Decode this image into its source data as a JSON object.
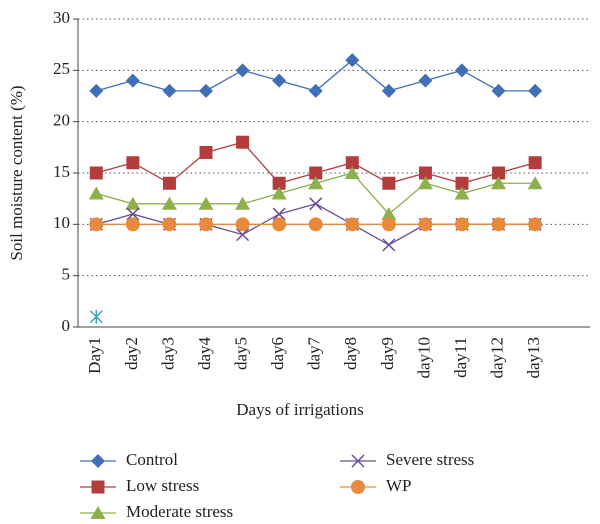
{
  "chart_data": {
    "type": "line",
    "xlabel": "Days of irrigations",
    "ylabel": "Soil moisture content (%)",
    "categories": [
      "Day1",
      "day2",
      "day3",
      "day4",
      "day5",
      "day6",
      "day7",
      "day8",
      "day9",
      "day10",
      "day11",
      "day12",
      "day13",
      null
    ],
    "series": [
      {
        "name": "Control",
        "color": "#3f6fb6",
        "marker": "diamond",
        "values": [
          23,
          24,
          23,
          23,
          25,
          24,
          23,
          26,
          23,
          24,
          25,
          23,
          23,
          null
        ]
      },
      {
        "name": "Low stress",
        "color": "#b33c3c",
        "marker": "square",
        "values": [
          15,
          16,
          14,
          17,
          18,
          14,
          15,
          16,
          14,
          15,
          14,
          15,
          16,
          null
        ]
      },
      {
        "name": "Moderate stress",
        "color": "#8cb04a",
        "marker": "triangle",
        "values": [
          13,
          12,
          12,
          12,
          12,
          13,
          14,
          15,
          11,
          14,
          13,
          14,
          14,
          null
        ]
      },
      {
        "name": "Severe stress",
        "color": "#6b4c98",
        "marker": "x",
        "values": [
          10,
          11,
          10,
          10,
          9,
          11,
          12,
          10,
          8,
          10,
          10,
          10,
          10,
          null
        ]
      },
      {
        "name": "WP",
        "color": "#e88a3c",
        "marker": "circle",
        "values": [
          10,
          10,
          10,
          10,
          10,
          10,
          10,
          10,
          10,
          10,
          10,
          10,
          10,
          null
        ]
      },
      {
        "color": "#3aa3b8",
        "marker": "asterisk",
        "values": [
          1,
          null,
          null,
          null,
          null,
          null,
          null,
          null,
          null,
          null,
          null,
          null,
          null,
          null
        ]
      }
    ],
    "ylim": [
      0,
      30
    ],
    "yticks": [
      0,
      5,
      10,
      15,
      20,
      25,
      30
    ],
    "grid": true
  }
}
